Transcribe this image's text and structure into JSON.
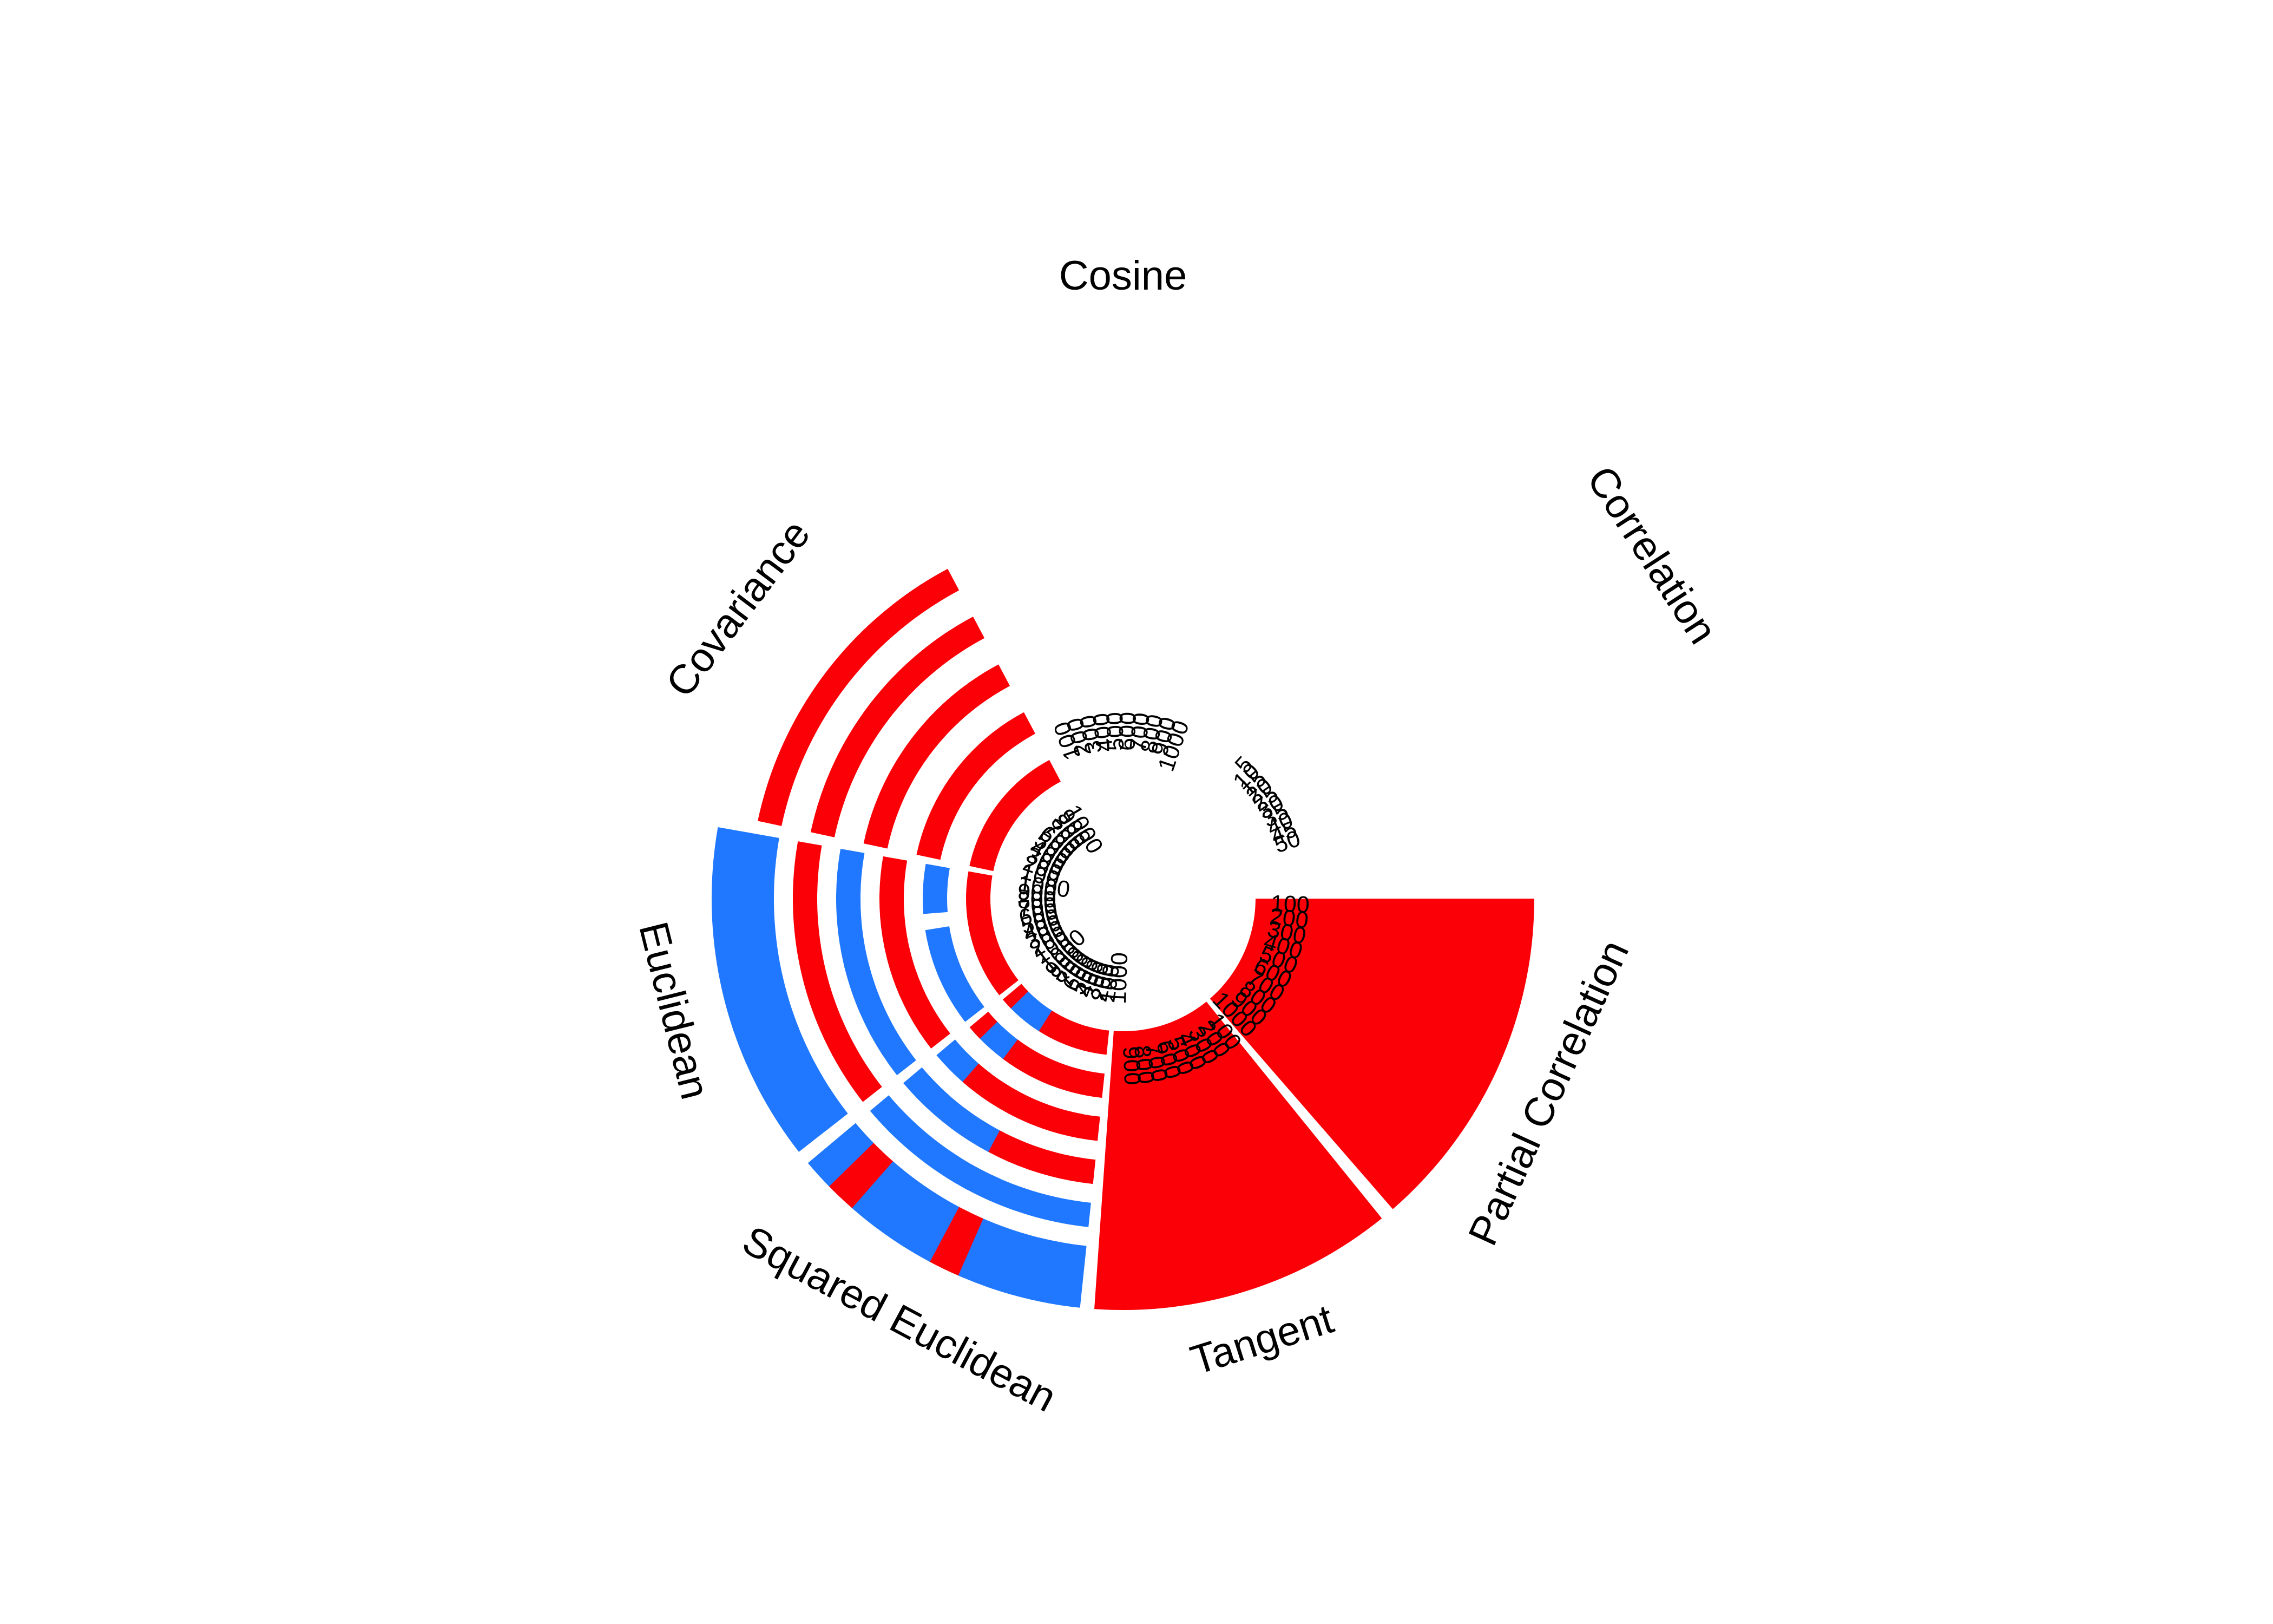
{
  "chart_data": {
    "type": "radial-bar",
    "colors": {
      "red": "#FC0007",
      "blue": "#1F78FF"
    },
    "legend": "none",
    "grid": false,
    "sectors": [
      {
        "name": "Correlation",
        "ticks": [
          "5",
          "10",
          "15",
          "20",
          "25",
          "30",
          "35",
          "40",
          "45",
          "50"
        ],
        "rings": []
      },
      {
        "name": "Partial Correlation",
        "ticks": [
          "100",
          "200",
          "300",
          "400",
          "500",
          "600",
          "700",
          "800",
          "900",
          "1000"
        ],
        "rings": [
          {
            "cells": [
              "red",
              "red",
              "red",
              "red",
              "red",
              "red",
              "red",
              "red",
              "red",
              "red"
            ]
          }
        ]
      },
      {
        "name": "Tangent",
        "ticks": [
          "100",
          "200",
          "300",
          "400",
          "500",
          "600",
          "700",
          "800",
          "900",
          "1000"
        ],
        "rings": [
          {
            "cells": [
              "red",
              "red",
              "red",
              "red",
              "red",
              "red",
              "red",
              "red",
              "red",
              "red"
            ]
          }
        ]
      },
      {
        "name": "Squared Euclidean",
        "ticks": [
          "100",
          "200",
          "300",
          "400",
          "500",
          "600",
          "700",
          "800",
          "900",
          "1000"
        ],
        "rings": [
          {
            "cells": [
              "red",
              "red",
              "red",
              "red",
              "red",
              "red",
              "blue",
              "blue",
              "blue",
              "red"
            ]
          },
          {
            "cells": [
              "red",
              "red",
              "red",
              "red",
              "red",
              "red",
              "red",
              "blue",
              "blue",
              "red"
            ]
          },
          {
            "cells": [
              "red",
              "red",
              "red",
              "red",
              "red",
              "red",
              "red",
              "red",
              "blue",
              "blue"
            ]
          },
          {
            "cells": [
              "red",
              "red",
              "red",
              "red",
              "red",
              "blue",
              "blue",
              "blue",
              "blue",
              "blue"
            ]
          },
          {
            "cells": [
              "blue",
              "blue",
              "blue",
              "blue",
              "blue",
              "blue",
              "blue",
              "blue",
              "blue",
              "blue"
            ]
          },
          {
            "cells": [
              "blue",
              "blue",
              "blue",
              "blue",
              "red",
              "blue",
              "blue",
              "blue",
              "red",
              "blue"
            ]
          }
        ]
      },
      {
        "name": "Euclidean",
        "ticks": [
          "100",
          "200",
          "300",
          "400",
          "500",
          "600",
          "700",
          "800",
          "900",
          "1000"
        ],
        "rings": [
          {
            "cells": [
              "red",
              "red",
              "red",
              "red",
              "red",
              "red",
              "red",
              "red",
              "red",
              "red"
            ]
          },
          {
            "cells": [
              "blue",
              "blue",
              "blue",
              "blue",
              "blue",
              "blue",
              "empty",
              "blue",
              "blue",
              "blue"
            ]
          },
          {
            "cells": [
              "red",
              "red",
              "red",
              "red",
              "red",
              "red",
              "red",
              "red",
              "red",
              "red"
            ]
          },
          {
            "cells": [
              "blue",
              "blue",
              "blue",
              "blue",
              "blue",
              "blue",
              "blue",
              "blue",
              "blue",
              "blue"
            ]
          },
          {
            "cells": [
              "red",
              "red",
              "red",
              "red",
              "red",
              "red",
              "red",
              "red",
              "red",
              "red"
            ]
          },
          {
            "cells": [
              "blue",
              "blue",
              "blue",
              "blue",
              "blue",
              "blue",
              "blue",
              "blue",
              "blue",
              "blue"
            ]
          }
        ]
      },
      {
        "name": "Covariance",
        "ticks": [
          "100",
          "200",
          "300",
          "400",
          "500",
          "600",
          "700",
          "800",
          "900",
          "1000"
        ],
        "rings": [
          {
            "cells": [
              "red",
              "red",
              "red",
              "red",
              "red",
              "red",
              "red",
              "red",
              "red",
              "red"
            ]
          },
          {
            "cells": [
              "red",
              "red",
              "red",
              "red",
              "red",
              "red",
              "red",
              "red",
              "red",
              "red"
            ]
          },
          {
            "cells": [
              "red",
              "red",
              "red",
              "red",
              "red",
              "red",
              "red",
              "red",
              "red",
              "red"
            ]
          },
          {
            "cells": [
              "red",
              "red",
              "red",
              "red",
              "red",
              "red",
              "red",
              "red",
              "red",
              "red"
            ]
          },
          {
            "cells": [
              "red",
              "red",
              "red",
              "red",
              "red",
              "red",
              "red",
              "red",
              "red",
              "red"
            ]
          }
        ]
      },
      {
        "name": "Cosine",
        "ticks": [
          "100",
          "200",
          "300",
          "400",
          "500",
          "600",
          "700",
          "800",
          "900",
          "1000"
        ],
        "rings": []
      }
    ]
  }
}
